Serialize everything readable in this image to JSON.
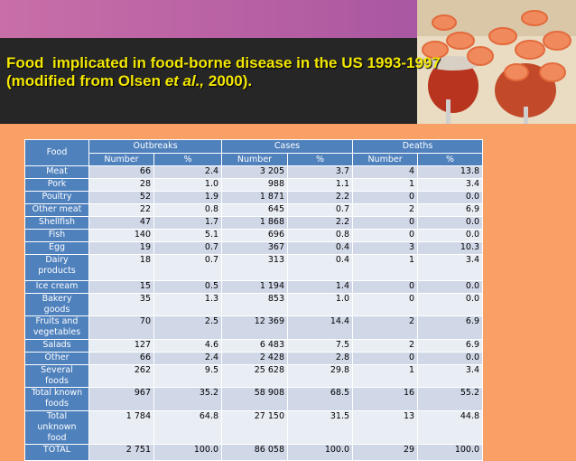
{
  "title": {
    "line1": "Food  implicated in food-borne disease in the US 1993-1997",
    "line2_before": "(modified from Olsen ",
    "line2_italic": "et al.,",
    "line2_after": " 2000)."
  },
  "table": {
    "food_header": "Food",
    "groups": [
      "Outbreaks",
      "Cases",
      "Deaths"
    ],
    "subheaders": [
      "Number",
      "%",
      "Number",
      "%",
      "Number",
      "%"
    ],
    "rows": [
      [
        "Meat",
        "66",
        "2.4",
        "3 205",
        "3.7",
        "4",
        "13.8"
      ],
      [
        "Pork",
        "28",
        "1.0",
        "988",
        "1.1",
        "1",
        "3.4"
      ],
      [
        "Poultry",
        "52",
        "1.9",
        "1 871",
        "2.2",
        "0",
        "0.0"
      ],
      [
        "Other meat",
        "22",
        "0.8",
        "645",
        "0.7",
        "2",
        "6.9"
      ],
      [
        "Shellfish",
        "47",
        "1.7",
        "1 868",
        "2.2",
        "0",
        "0.0"
      ],
      [
        "Fish",
        "140",
        "5.1",
        "696",
        "0.8",
        "0",
        "0.0"
      ],
      [
        "Egg",
        "19",
        "0.7",
        "367",
        "0.4",
        "3",
        "10.3"
      ],
      [
        "Dairy products",
        "18",
        "0.7",
        "313",
        "0.4",
        "1",
        "3.4"
      ],
      [
        "Ice cream",
        "15",
        "0.5",
        "1 194",
        "1.4",
        "0",
        "0.0"
      ],
      [
        "Bakery goods",
        "35",
        "1.3",
        "853",
        "1.0",
        "0",
        "0.0"
      ],
      [
        "Fruits and vegetables",
        "70",
        "2.5",
        "12 369",
        "14.4",
        "2",
        "6.9"
      ],
      [
        "Salads",
        "127",
        "4.6",
        "6 483",
        "7.5",
        "2",
        "6.9"
      ],
      [
        "Other",
        "66",
        "2.4",
        "2 428",
        "2.8",
        "0",
        "0.0"
      ],
      [
        "Several foods",
        "262",
        "9.5",
        "25 628",
        "29.8",
        "1",
        "3.4"
      ],
      [
        "Total known foods",
        "967",
        "35.2",
        "58 908",
        "68.5",
        "16",
        "55.2"
      ],
      [
        "Total unknown food",
        "1 784",
        "64.8",
        "27 150",
        "31.5",
        "13",
        "44.8"
      ],
      [
        "TOTAL",
        "2 751",
        "100.0",
        "86 058",
        "100.0",
        "29",
        "100.0"
      ]
    ]
  }
}
